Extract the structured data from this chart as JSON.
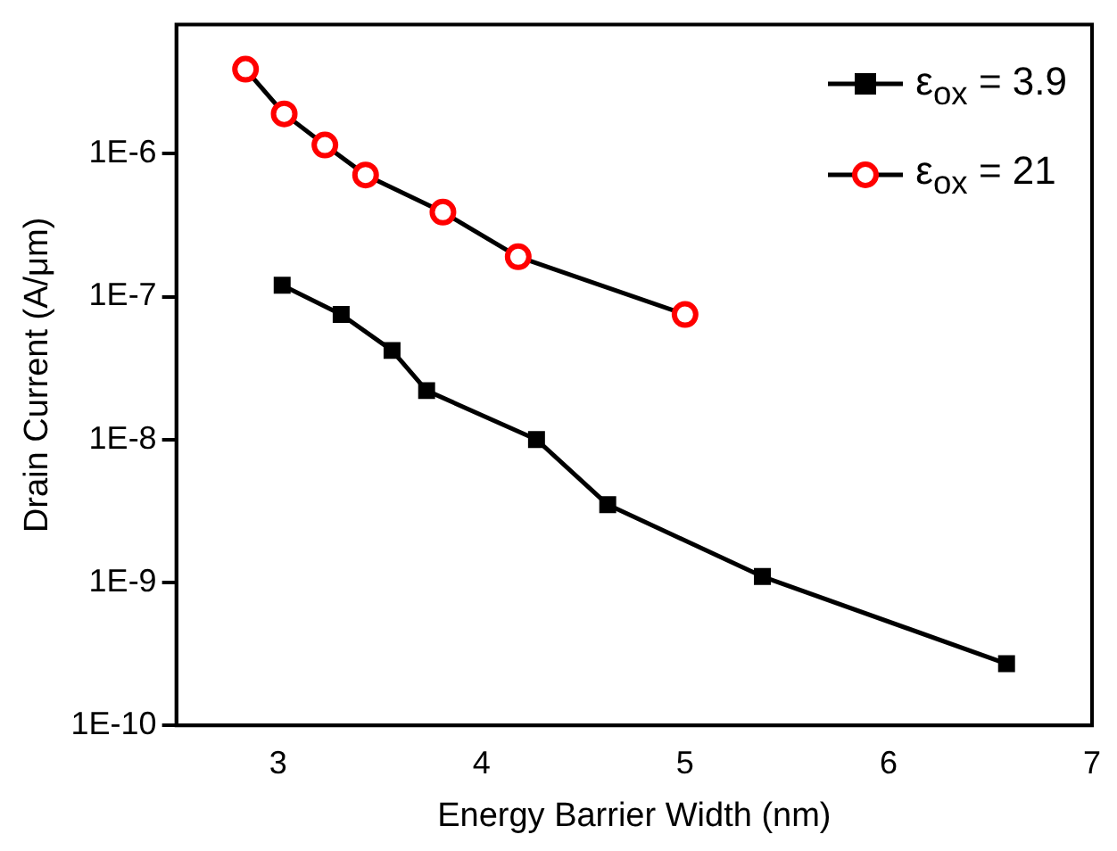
{
  "chart_data": {
    "type": "line",
    "xlabel": "Energy Barrier Width (nm)",
    "ylabel": "Drain Current (A/μm)",
    "log": "y",
    "xlim": [
      2.5,
      7
    ],
    "xticks": [
      3,
      4,
      5,
      6,
      7
    ],
    "ylim": [
      1e-10,
      8e-06
    ],
    "yticks": [
      {
        "value": 1e-10,
        "label": "1E-10"
      },
      {
        "value": 1e-09,
        "label": "1E-9"
      },
      {
        "value": 1e-08,
        "label": "1E-8"
      },
      {
        "value": 1e-07,
        "label": "1E-7"
      },
      {
        "value": 1e-06,
        "label": "1E-6"
      }
    ],
    "grid": false,
    "legend": "top right",
    "line_style": "solid",
    "series": [
      {
        "name": "ε$_{ox}$ = 3.9",
        "color": "#000000",
        "marker": "square",
        "x": [
          3.02,
          3.31,
          3.56,
          3.73,
          4.27,
          4.62,
          5.38,
          6.58
        ],
        "values": [
          1.2e-07,
          7.5e-08,
          4.2e-08,
          2.2e-08,
          1e-08,
          3.5e-09,
          1.1e-09,
          2.7e-10
        ]
      },
      {
        "name": "ε$_{ox}$ = 21",
        "color": "#ff0000",
        "marker": "circle",
        "x": [
          2.84,
          3.03,
          3.23,
          3.43,
          3.81,
          4.18,
          5.0
        ],
        "values": [
          3.9e-06,
          1.9e-06,
          1.15e-06,
          7.1e-07,
          3.9e-07,
          1.9e-07,
          7.5e-08
        ]
      }
    ]
  }
}
